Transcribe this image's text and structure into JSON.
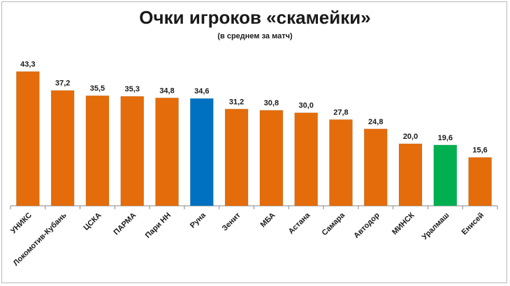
{
  "chart_data": {
    "type": "bar",
    "title": "Очки игроков «скамейки»",
    "subtitle": "(в среднем за матч)",
    "categories": [
      "УНИКС",
      "Локомотив-Кубань",
      "ЦСКА",
      "ПАРМА",
      "Пари НН",
      "Руна",
      "Зенит",
      "МБА",
      "Астана",
      "Самара",
      "Автодор",
      "МИНСК",
      "Уралмаш",
      "Енисей"
    ],
    "values": [
      43.3,
      37.2,
      35.5,
      35.3,
      34.8,
      34.6,
      31.2,
      30.8,
      30.0,
      27.8,
      24.8,
      20.0,
      19.6,
      15.6
    ],
    "value_labels": [
      "43,3",
      "37,2",
      "35,5",
      "35,3",
      "34,8",
      "34,6",
      "31,2",
      "30,8",
      "30,0",
      "27,8",
      "24,8",
      "20,0",
      "19,6",
      "15,6"
    ],
    "colors": [
      "#e46c0a",
      "#e46c0a",
      "#e46c0a",
      "#e46c0a",
      "#e46c0a",
      "#0070c0",
      "#e46c0a",
      "#e46c0a",
      "#e46c0a",
      "#e46c0a",
      "#e46c0a",
      "#e46c0a",
      "#00b050",
      "#e46c0a"
    ],
    "xlabel": "",
    "ylabel": "",
    "ylim": [
      0,
      45
    ],
    "grid": false,
    "legend": "none"
  }
}
